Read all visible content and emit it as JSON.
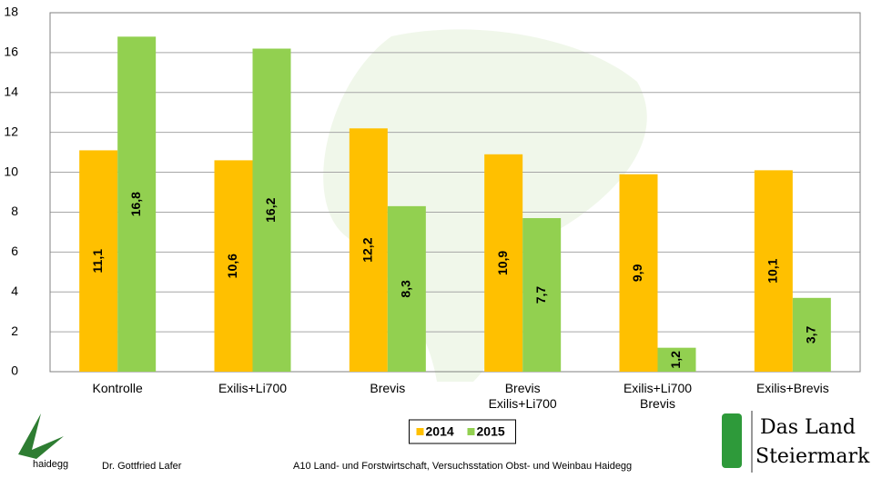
{
  "chart_data": {
    "type": "bar",
    "categories": [
      "Kontrolle",
      "Exilis+Li700",
      "Brevis",
      "Brevis\nExilis+Li700",
      "Exilis+Li700\nBrevis",
      "Exilis+Brevis"
    ],
    "series": [
      {
        "name": "2014",
        "color": "#ffc000",
        "values": [
          11.1,
          10.6,
          12.2,
          10.9,
          9.9,
          10.1
        ],
        "value_labels": [
          "11,1",
          "10,6",
          "12,2",
          "10,9",
          "9,9",
          "10,1"
        ]
      },
      {
        "name": "2015",
        "color": "#92d050",
        "values": [
          16.8,
          16.2,
          8.3,
          7.7,
          1.2,
          3.7
        ],
        "value_labels": [
          "16,8",
          "16,2",
          "8,3",
          "7,7",
          "1,2",
          "3,7"
        ]
      }
    ],
    "ylim": [
      0,
      18
    ],
    "yticks": [
      0,
      2,
      4,
      6,
      8,
      10,
      12,
      14,
      16,
      18
    ],
    "grid": true,
    "legend": "bottom"
  },
  "footer": {
    "logo_left": "haidegg",
    "author": "Dr. Gottfried Lafer",
    "institution": "A10 Land- und Forstwirtschaft, Versuchsstation Obst- und Weinbau Haidegg",
    "logo_right": [
      "Das Land",
      "Steiermark"
    ]
  }
}
